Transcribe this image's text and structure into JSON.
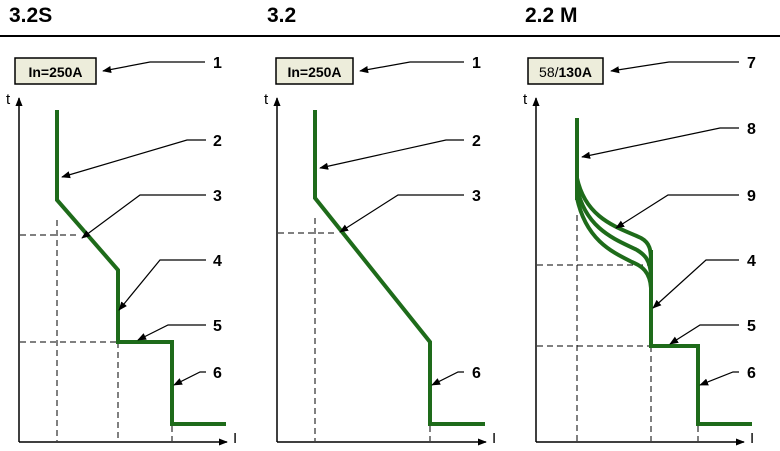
{
  "colors": {
    "curve": "#1e6b1a",
    "axis": "#000000",
    "box_fill": "#ededdb"
  },
  "panels": [
    {
      "title": "3.2S",
      "box_label": "In=250A",
      "axis_t": "t",
      "axis_i": "I",
      "callouts": [
        "1",
        "2",
        "3",
        "4",
        "5",
        "6"
      ]
    },
    {
      "title": "3.2",
      "box_label": "In=250A",
      "axis_t": "t",
      "axis_i": "I",
      "callouts": [
        "1",
        "2",
        "3",
        "6"
      ]
    },
    {
      "title": "2.2 M",
      "box_label_a": "58/",
      "box_label_b": "130A",
      "axis_t": "t",
      "axis_i": "I",
      "callouts": [
        "7",
        "8",
        "9",
        "4",
        "5",
        "6"
      ]
    }
  ]
}
